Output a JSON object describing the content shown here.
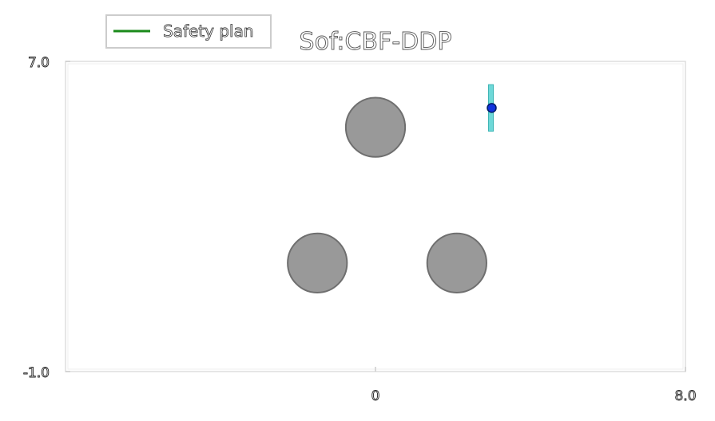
{
  "chart_data": {
    "type": "scatter",
    "title": "Sof:CBF-DDP",
    "xlabel": "",
    "ylabel": "",
    "xlim": [
      -8.0,
      8.0
    ],
    "ylim": [
      -1.0,
      7.0
    ],
    "xticks": [
      {
        "value": 0,
        "label": "0"
      },
      {
        "value": 8.0,
        "label": "8.0"
      }
    ],
    "yticks": [
      {
        "value": 7.0,
        "label": "7.0"
      },
      {
        "value": -1.0,
        "label": "-1.0"
      }
    ],
    "grid": false,
    "legend": {
      "placement": "top-left",
      "entries": [
        {
          "label": "Safety plan",
          "color": "#1a8a1a",
          "marker": "line"
        }
      ]
    },
    "obstacles": [
      {
        "name": "obstacle-top",
        "x": 0.0,
        "y": 5.3,
        "r": 0.8
      },
      {
        "name": "obstacle-left",
        "x": -1.5,
        "y": 1.8,
        "r": 0.8
      },
      {
        "name": "obstacle-right",
        "x": 2.1,
        "y": 1.8,
        "r": 0.8
      }
    ],
    "robot": {
      "x": 3.0,
      "y": 5.8
    },
    "trajectory": {
      "x": 3.0,
      "y_min": 5.2,
      "y_max": 6.4
    },
    "colors": {
      "obstacle_fill": "#999999",
      "obstacle_edge": "#6f6f6f",
      "robot_fill": "#1133dd",
      "robot_edge": "#001a66",
      "trajectory": "#6ed8d8",
      "trajectory_edge": "#3cb5b5",
      "frame": "#dddddd"
    }
  }
}
